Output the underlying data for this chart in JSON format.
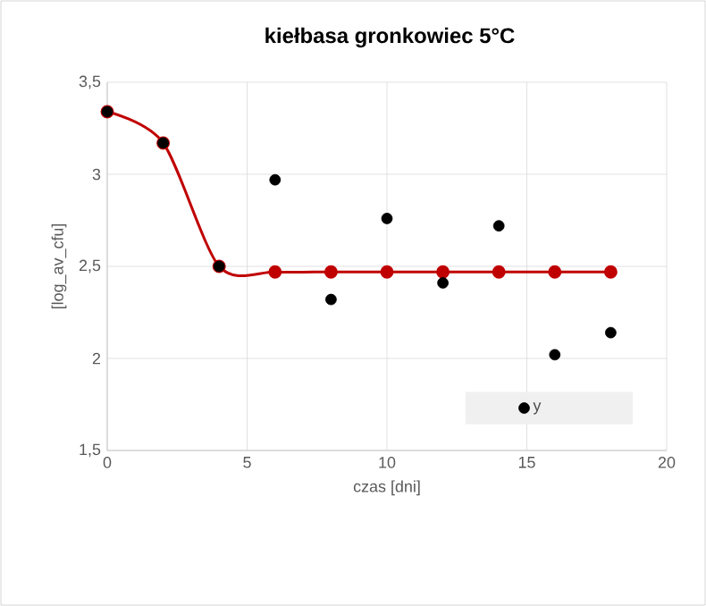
{
  "chart_data": {
    "type": "scatter",
    "title": "kiełbasa gronkowiec 5°C",
    "xlabel": "czas  [dni]",
    "ylabel": "[log_av_cfu]",
    "x": [
      0,
      2,
      4,
      6,
      8,
      10,
      12,
      14,
      16,
      18
    ],
    "series": [
      {
        "type": "line",
        "color": "#c00000",
        "marker": "circle",
        "values": [
          3.34,
          3.17,
          2.5,
          2.47,
          2.47,
          2.47,
          2.47,
          2.47,
          2.47,
          2.47
        ]
      },
      {
        "name": "y",
        "color": "#000000",
        "marker": "circle",
        "values": [
          3.34,
          3.17,
          2.5,
          2.97,
          2.32,
          2.76,
          2.41,
          2.72,
          2.02,
          2.14
        ]
      }
    ],
    "xlim": [
      0,
      20
    ],
    "xticks": [
      0,
      5,
      10,
      15,
      20
    ],
    "ylim": [
      1.5,
      3.5
    ],
    "yticks": [
      {
        "value": 1.5,
        "label": "1,5"
      },
      2,
      {
        "value": 2.5,
        "label": "2,5"
      },
      3,
      {
        "value": 3.5,
        "label": "3,5"
      }
    ],
    "grid": true,
    "legend": "bottom right"
  }
}
